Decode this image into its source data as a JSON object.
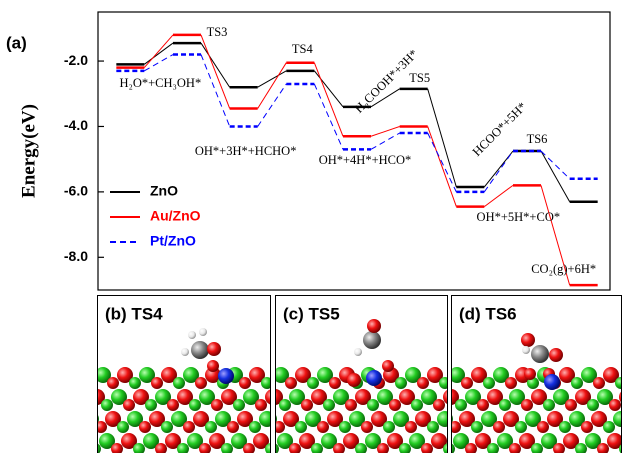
{
  "chart_data": {
    "type": "energy-profile",
    "panel_label": "(a)",
    "ylabel": "Energy(eV)",
    "categories": [
      "H₂O*+CH₃OH*",
      "TS3",
      "OH*+3H*+HCHO*",
      "TS4",
      "H₂COOH*+3H*",
      "TS5",
      "HCOO*+5H*",
      "TS6",
      "CO₂(g)+6H*"
    ],
    "annotations": [
      {
        "text": "OH*+4H*+HCO*",
        "category": 4
      },
      {
        "text": "OH*+5H*+CO*",
        "category": 6
      }
    ],
    "series": [
      {
        "name": "ZnO",
        "color": "#000000",
        "linestyle": "solid",
        "values": [
          -2.1,
          -1.45,
          -2.8,
          -2.3,
          -3.4,
          -2.85,
          -5.85,
          -4.75,
          -6.3
        ]
      },
      {
        "name": "Au/ZnO",
        "color": "#ff0000",
        "linestyle": "solid",
        "values": [
          -2.2,
          -1.2,
          -3.45,
          -2.05,
          -4.3,
          -4.0,
          -6.45,
          -5.8,
          -8.85
        ]
      },
      {
        "name": "Pt/ZnO",
        "color": "#0000ff",
        "linestyle": "dashed",
        "values": [
          -2.3,
          -1.8,
          -4.0,
          -2.7,
          -4.7,
          -4.2,
          -6.0,
          -4.75,
          -5.6
        ]
      }
    ],
    "ylim": [
      -9.0,
      -0.5
    ],
    "yticks": [
      {
        "value": -2.0,
        "label": "-2.0"
      },
      {
        "value": -4.0,
        "label": "-4.0"
      },
      {
        "value": -6.0,
        "label": "-6.0"
      },
      {
        "value": -8.0,
        "label": "-8.0"
      }
    ],
    "legend": "lower-left"
  },
  "panels": [
    {
      "label": "(b) TS4"
    },
    {
      "label": "(c) TS5"
    },
    {
      "label": "(d) TS6"
    }
  ]
}
